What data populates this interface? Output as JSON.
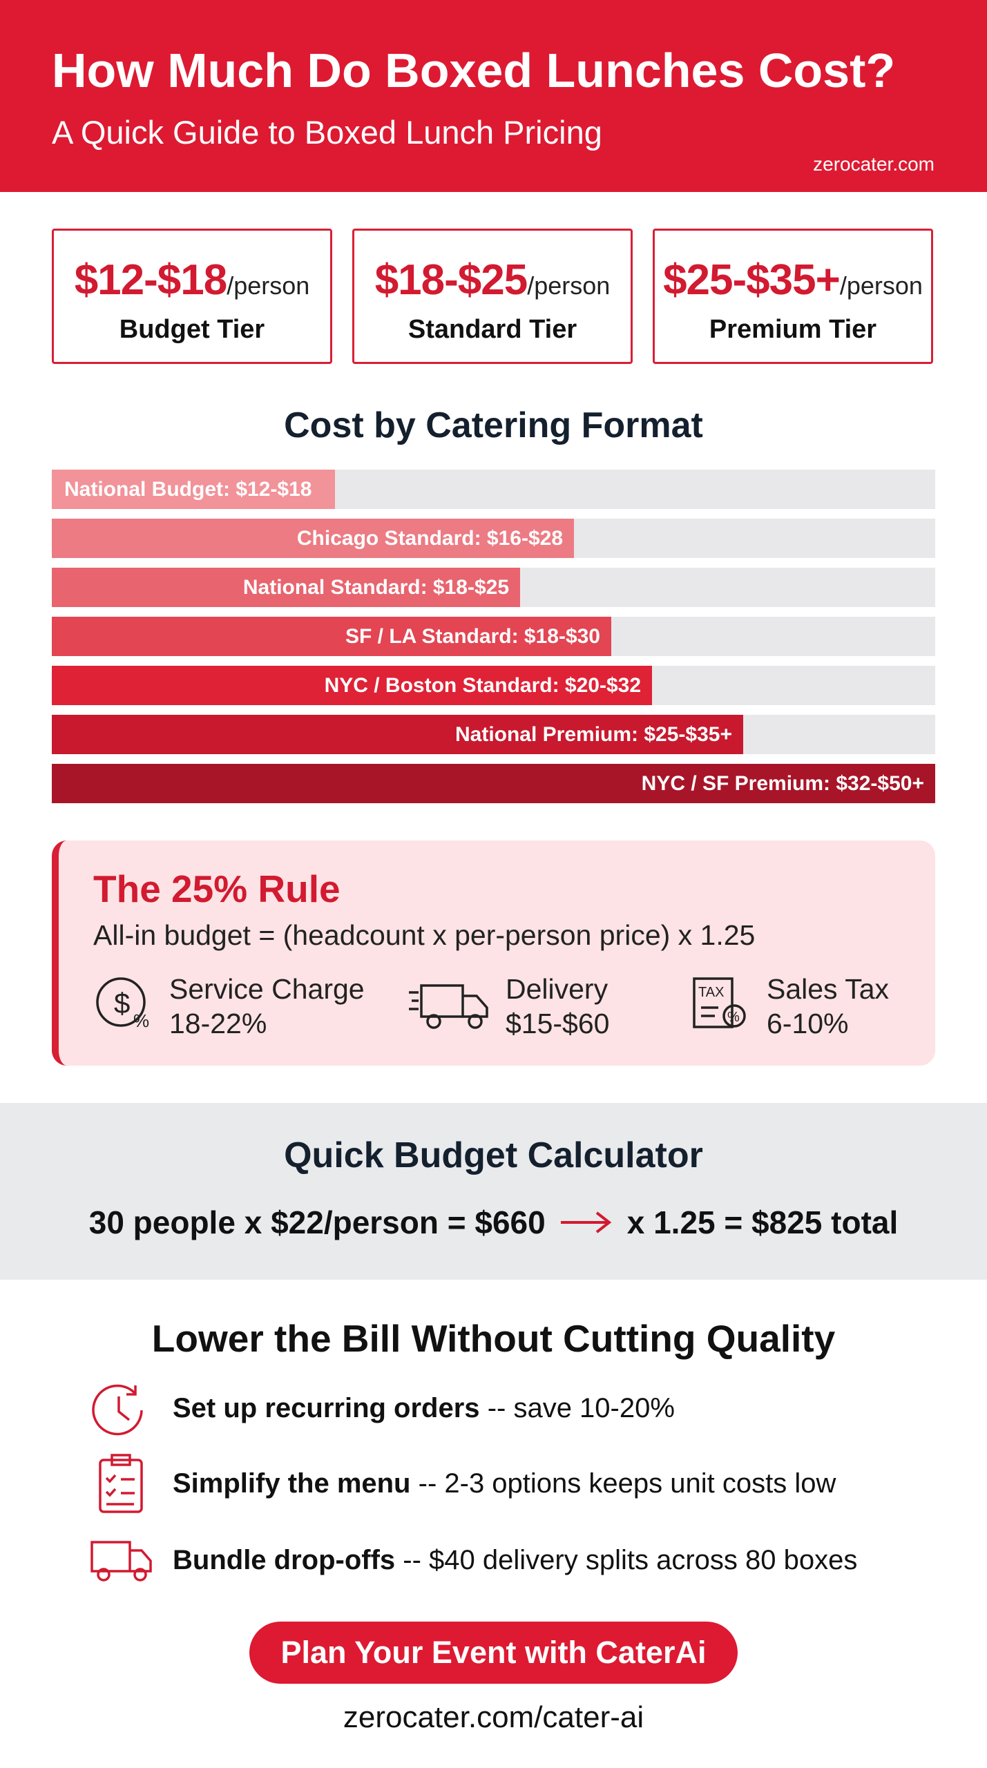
{
  "header": {
    "title": "How Much Do Boxed Lunches Cost?",
    "subtitle": "A Quick Guide to Boxed Lunch Pricing",
    "site": "zerocater.com"
  },
  "tiers": [
    {
      "price": "$12-$18",
      "unit": "/person",
      "label": "Budget Tier"
    },
    {
      "price": "$18-$25",
      "unit": "/person",
      "label": "Standard Tier"
    },
    {
      "price": "$25-$35+",
      "unit": "/person",
      "label": "Premium Tier"
    }
  ],
  "formats": {
    "title": "Cost by Catering Format",
    "bars": [
      "National Budget: $12-$18",
      "Chicago Standard: $16-$28",
      "National Standard: $18-$25",
      "SF / LA Standard: $18-$30",
      "NYC / Boston Standard: $20-$32",
      "National Premium: $25-$35+",
      "NYC / SF Premium: $32-$50+"
    ]
  },
  "rule": {
    "title": "The 25% Rule",
    "formula": "All-in budget = (headcount x per-person price) x 1.25",
    "items": [
      {
        "label": "Service Charge",
        "value": "18-22%"
      },
      {
        "label": "Delivery",
        "value": "$15-$60"
      },
      {
        "label": "Sales Tax",
        "value": "6-10%"
      }
    ]
  },
  "calculator": {
    "title": "Quick Budget Calculator",
    "left": "30 people x $22/person = $660",
    "right": "x 1.25 = $825 total"
  },
  "tips": {
    "title": "Lower the Bill Without Cutting Quality",
    "items": [
      {
        "bold": "Set up recurring orders",
        "rest": "-- save 10-20%"
      },
      {
        "bold": "Simplify the menu",
        "rest": "-- 2-3 options keeps unit costs low"
      },
      {
        "bold": "Bundle drop-offs",
        "rest": "-- $40 delivery splits across 80 boxes"
      }
    ]
  },
  "cta": {
    "button": "Plan Your Event with CaterAi",
    "url": "zerocater.com/cater-ai"
  }
}
